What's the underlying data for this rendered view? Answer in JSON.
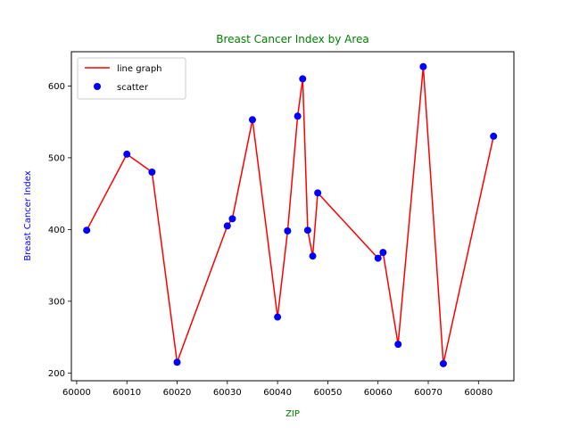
{
  "chart_data": {
    "type": "line",
    "title": "Breast Cancer Index by Area",
    "xlabel": "ZIP",
    "ylabel": "Breast Cancer Index",
    "xlim": [
      59998.95,
      60087.05
    ],
    "ylim": [
      189.2,
      647.8
    ],
    "xticks": [
      60000,
      60010,
      60020,
      60030,
      60040,
      60050,
      60060,
      60070,
      60080
    ],
    "yticks": [
      200,
      300,
      400,
      500,
      600
    ],
    "grid": false,
    "legend_position": "top-left",
    "colors": {
      "title": "#008000",
      "xlabel": "#008000",
      "ylabel": "#0000ff",
      "line": "#ff0000",
      "scatter": "#0000ff"
    },
    "series": [
      {
        "name": "line graph",
        "kind": "line"
      },
      {
        "name": "scatter",
        "kind": "scatter"
      }
    ],
    "x": [
      60002,
      60010,
      60015,
      60020,
      60030,
      60031,
      60035,
      60040,
      60042,
      60044,
      60045,
      60046,
      60047,
      60048,
      60060,
      60061,
      60064,
      60069,
      60073,
      60083
    ],
    "values": [
      399,
      505,
      480,
      215,
      405,
      415,
      553,
      278,
      398,
      558,
      610,
      399,
      363,
      451,
      360,
      368,
      240,
      627,
      213,
      530
    ]
  }
}
